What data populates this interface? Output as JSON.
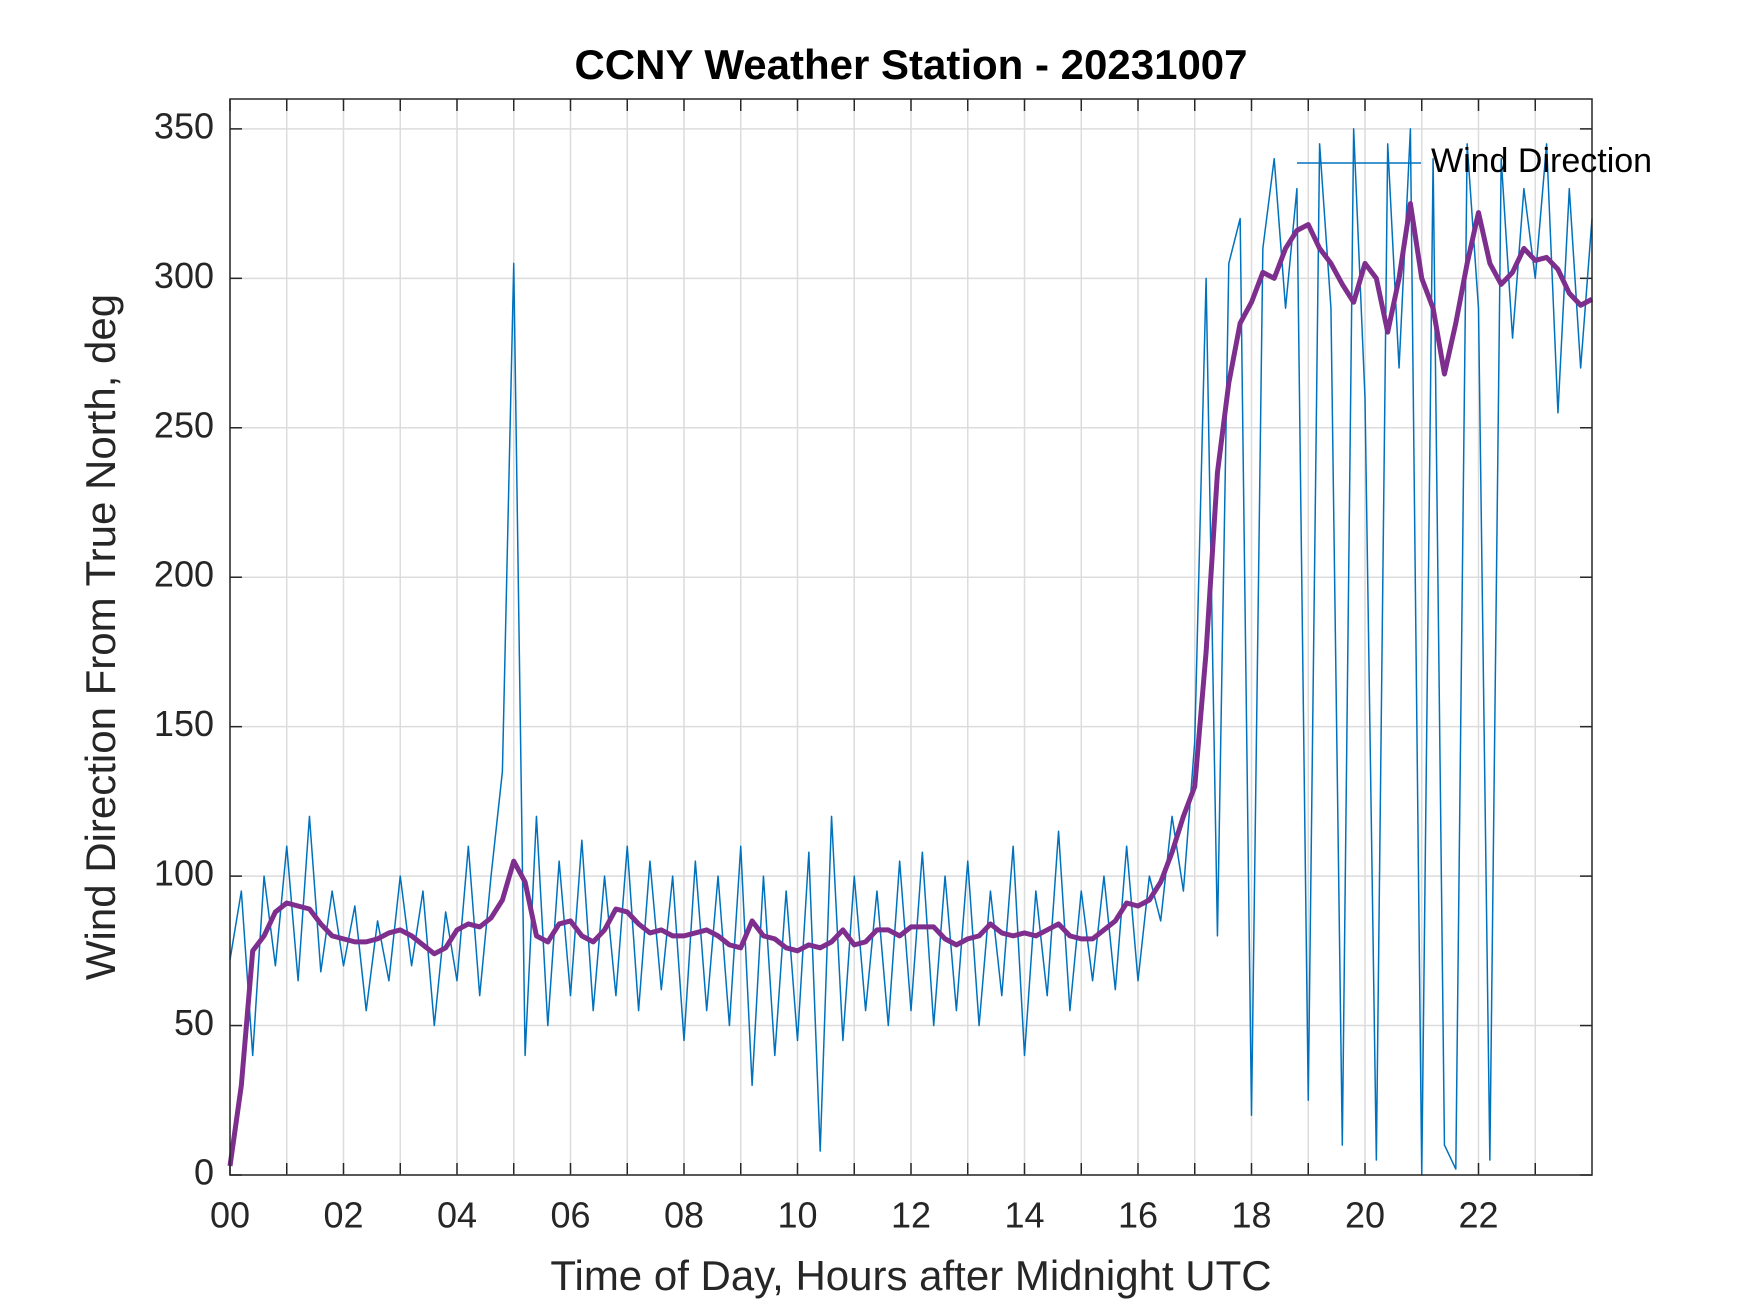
{
  "chart_data": {
    "type": "line",
    "title": "CCNY Weather Station - 20231007",
    "xlabel": "Time of Day, Hours after Midnight UTC",
    "ylabel": "Wind Direction From True North, deg",
    "x": [
      0,
      0.2,
      0.4,
      0.6,
      0.8,
      1,
      1.2,
      1.4,
      1.6,
      1.8,
      2,
      2.2,
      2.4,
      2.6,
      2.8,
      3,
      3.2,
      3.4,
      3.6,
      3.8,
      4,
      4.2,
      4.4,
      4.6,
      4.8,
      5,
      5.2,
      5.4,
      5.6,
      5.8,
      6,
      6.2,
      6.4,
      6.6,
      6.8,
      7,
      7.2,
      7.4,
      7.6,
      7.8,
      8,
      8.2,
      8.4,
      8.6,
      8.8,
      9,
      9.2,
      9.4,
      9.6,
      9.8,
      10,
      10.2,
      10.4,
      10.6,
      10.8,
      11,
      11.2,
      11.4,
      11.6,
      11.8,
      12,
      12.2,
      12.4,
      12.6,
      12.8,
      13,
      13.2,
      13.4,
      13.6,
      13.8,
      14,
      14.2,
      14.4,
      14.6,
      14.8,
      15,
      15.2,
      15.4,
      15.6,
      15.8,
      16,
      16.2,
      16.4,
      16.6,
      16.8,
      17,
      17.2,
      17.4,
      17.6,
      17.8,
      18,
      18.2,
      18.4,
      18.6,
      18.8,
      19,
      19.2,
      19.4,
      19.6,
      19.8,
      20,
      20.2,
      20.4,
      20.6,
      20.8,
      21,
      21.2,
      21.4,
      21.6,
      21.8,
      22,
      22.2,
      22.4,
      22.6,
      22.8,
      23,
      23.2,
      23.4,
      23.6,
      23.8,
      24
    ],
    "series": [
      {
        "name": "Wind Direction",
        "color": "#0072bd",
        "linewidth": 1.5,
        "values": [
          72,
          95,
          40,
          100,
          70,
          110,
          65,
          120,
          68,
          95,
          70,
          90,
          55,
          85,
          65,
          100,
          70,
          95,
          50,
          88,
          65,
          110,
          60,
          100,
          135,
          305,
          40,
          120,
          50,
          105,
          60,
          112,
          55,
          100,
          60,
          110,
          55,
          105,
          62,
          100,
          45,
          105,
          55,
          100,
          50,
          110,
          30,
          100,
          40,
          95,
          45,
          108,
          8,
          120,
          45,
          100,
          55,
          95,
          50,
          105,
          55,
          108,
          50,
          100,
          55,
          105,
          50,
          95,
          60,
          110,
          40,
          95,
          60,
          115,
          55,
          95,
          65,
          100,
          62,
          110,
          65,
          100,
          85,
          120,
          95,
          145,
          300,
          80,
          305,
          320,
          20,
          310,
          340,
          290,
          330,
          25,
          345,
          290,
          10,
          350,
          260,
          5,
          345,
          270,
          350,
          0,
          340,
          10,
          2,
          345,
          290,
          5,
          340,
          280,
          330,
          300,
          345,
          255,
          330,
          270,
          320
        ]
      },
      {
        "color": "#7e2f8e",
        "linewidth": 5,
        "values": [
          3,
          30,
          75,
          80,
          88,
          91,
          90,
          89,
          84,
          80,
          79,
          78,
          78,
          79,
          81,
          82,
          80,
          77,
          74,
          76,
          82,
          84,
          83,
          86,
          92,
          105,
          98,
          80,
          78,
          84,
          85,
          80,
          78,
          82,
          89,
          88,
          84,
          81,
          82,
          80,
          80,
          81,
          82,
          80,
          77,
          76,
          85,
          80,
          79,
          76,
          75,
          77,
          76,
          78,
          82,
          77,
          78,
          82,
          82,
          80,
          83,
          83,
          83,
          79,
          77,
          79,
          80,
          84,
          81,
          80,
          81,
          80,
          82,
          84,
          80,
          79,
          79,
          82,
          85,
          91,
          90,
          92,
          98,
          108,
          120,
          130,
          175,
          235,
          265,
          285,
          292,
          302,
          300,
          310,
          316,
          318,
          310,
          305,
          298,
          292,
          305,
          300,
          282,
          300,
          325,
          300,
          290,
          268,
          285,
          305,
          322,
          305,
          298,
          302,
          310,
          306,
          307,
          303,
          295,
          291,
          293
        ]
      }
    ],
    "xlim": [
      0,
      24
    ],
    "xticks": [
      {
        "value": 0,
        "label": "00"
      },
      {
        "value": 2,
        "label": "02"
      },
      {
        "value": 4,
        "label": "04"
      },
      {
        "value": 6,
        "label": "06"
      },
      {
        "value": 8,
        "label": "08"
      },
      {
        "value": 10,
        "label": "10"
      },
      {
        "value": 12,
        "label": "12"
      },
      {
        "value": 14,
        "label": "14"
      },
      {
        "value": 16,
        "label": "16"
      },
      {
        "value": 18,
        "label": "18"
      },
      {
        "value": 20,
        "label": "20"
      },
      {
        "value": 22,
        "label": "22"
      }
    ],
    "xminorticks": [
      1,
      3,
      5,
      7,
      9,
      11,
      13,
      15,
      17,
      19,
      21,
      23
    ],
    "ylim": [
      0,
      360
    ],
    "yticks": [
      0,
      50,
      100,
      150,
      200,
      250,
      300,
      350
    ],
    "grid": true,
    "legend": "upper right"
  }
}
